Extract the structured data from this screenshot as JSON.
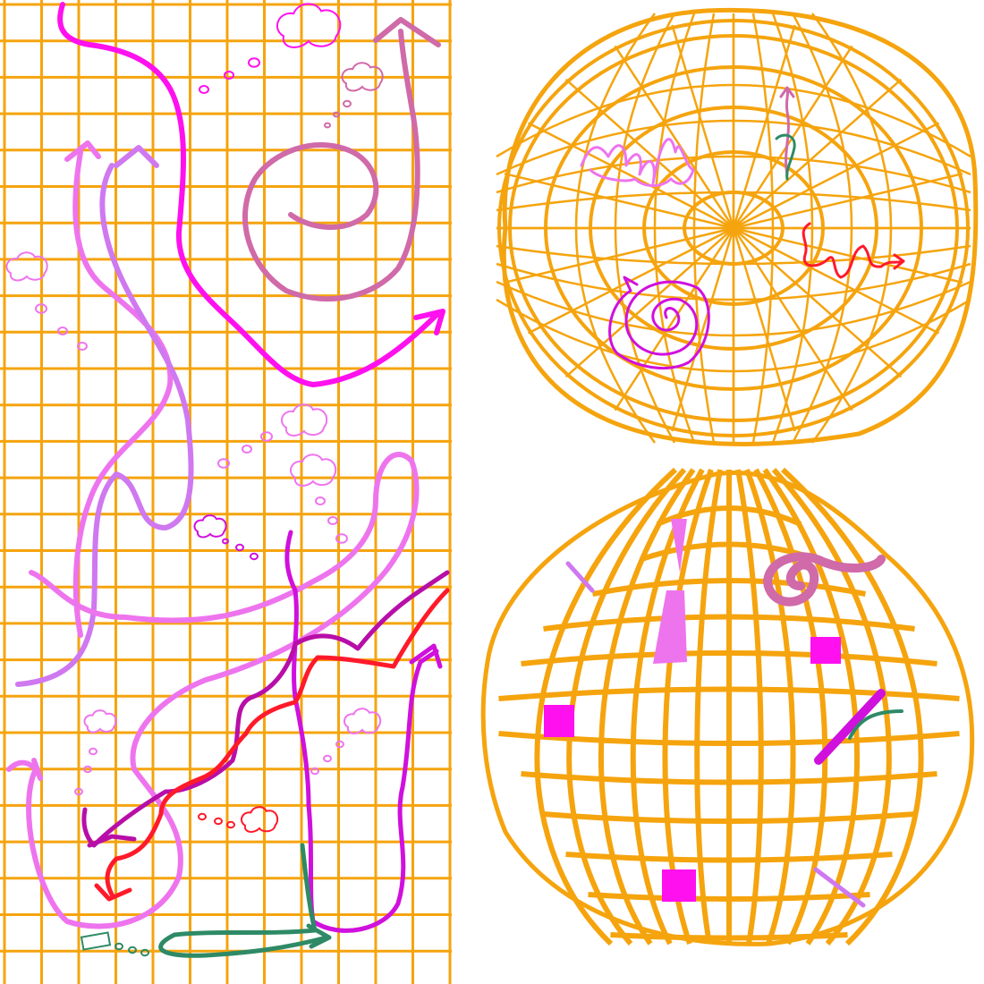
{
  "title": "",
  "palette": {
    "grid": "#f5a40e",
    "background": "#ffffff",
    "magenta": "#ff10ee",
    "pink": "#ee74ee",
    "violet": "#cf78f0",
    "purple": "#d010dd",
    "mauve": "#d06aa8",
    "red": "#ff1a2a",
    "dark_magenta": "#b80ea8",
    "green": "#2e8a66"
  },
  "panels": {
    "grid_panel": {
      "kind": "square-grid",
      "strokes": [
        "magenta",
        "pink",
        "violet",
        "purple",
        "mauve",
        "red",
        "dark_magenta",
        "green"
      ]
    },
    "warp_top": {
      "kind": "bulged-grid-sphere",
      "strokes": [
        "pink",
        "mauve",
        "purple",
        "red",
        "green"
      ]
    },
    "warp_bottom": {
      "kind": "pinched-grid-sphere",
      "strokes": [
        "pink",
        "mauve",
        "magenta",
        "purple",
        "green"
      ]
    }
  }
}
